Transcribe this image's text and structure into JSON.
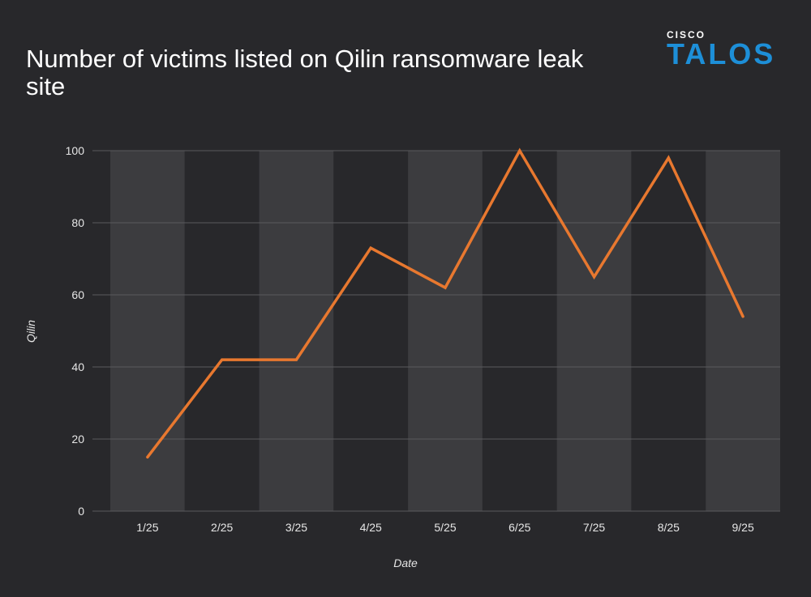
{
  "header": {
    "title": "Number of victims listed on Qilin ransomware leak site",
    "logo_top": "CISCO",
    "logo_main": "TALOS"
  },
  "colors": {
    "background": "#28282b",
    "band_light": "#3c3c3f",
    "band_dark": "#28282b",
    "grid": "#5a5a5e",
    "line": "#e8782f",
    "logo": "#1d8fd8"
  },
  "chart_data": {
    "type": "line",
    "title": "Number of victims listed on Qilin ransomware leak site",
    "xlabel": "Date",
    "ylabel": "Qilin",
    "categories": [
      "1/25",
      "2/25",
      "3/25",
      "4/25",
      "5/25",
      "6/25",
      "7/25",
      "8/25",
      "9/25"
    ],
    "series": [
      {
        "values": [
          15,
          42,
          42,
          73,
          62,
          100,
          65,
          98,
          54
        ]
      }
    ],
    "ylim": [
      0,
      100
    ],
    "yticks": [
      0,
      20,
      40,
      60,
      80,
      100
    ],
    "grid": true,
    "legend": "none"
  }
}
